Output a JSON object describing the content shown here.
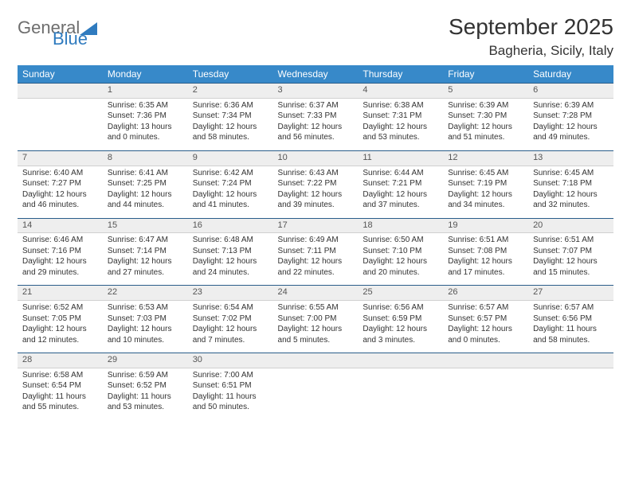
{
  "logo": {
    "word1": "General",
    "word2": "Blue"
  },
  "title": "September 2025",
  "location": "Bagheria, Sicily, Italy",
  "colors": {
    "header_bg": "#3789c9",
    "header_text": "#ffffff",
    "row_divider": "#2a5d8a",
    "daynum_bg": "#eeeeee",
    "text": "#333333",
    "logo_gray": "#6e6e6e",
    "logo_blue": "#2f7bbf"
  },
  "weekdays": [
    "Sunday",
    "Monday",
    "Tuesday",
    "Wednesday",
    "Thursday",
    "Friday",
    "Saturday"
  ],
  "weeks": [
    [
      null,
      {
        "n": "1",
        "sr": "Sunrise: 6:35 AM",
        "ss": "Sunset: 7:36 PM",
        "d1": "Daylight: 13 hours",
        "d2": "and 0 minutes."
      },
      {
        "n": "2",
        "sr": "Sunrise: 6:36 AM",
        "ss": "Sunset: 7:34 PM",
        "d1": "Daylight: 12 hours",
        "d2": "and 58 minutes."
      },
      {
        "n": "3",
        "sr": "Sunrise: 6:37 AM",
        "ss": "Sunset: 7:33 PM",
        "d1": "Daylight: 12 hours",
        "d2": "and 56 minutes."
      },
      {
        "n": "4",
        "sr": "Sunrise: 6:38 AM",
        "ss": "Sunset: 7:31 PM",
        "d1": "Daylight: 12 hours",
        "d2": "and 53 minutes."
      },
      {
        "n": "5",
        "sr": "Sunrise: 6:39 AM",
        "ss": "Sunset: 7:30 PM",
        "d1": "Daylight: 12 hours",
        "d2": "and 51 minutes."
      },
      {
        "n": "6",
        "sr": "Sunrise: 6:39 AM",
        "ss": "Sunset: 7:28 PM",
        "d1": "Daylight: 12 hours",
        "d2": "and 49 minutes."
      }
    ],
    [
      {
        "n": "7",
        "sr": "Sunrise: 6:40 AM",
        "ss": "Sunset: 7:27 PM",
        "d1": "Daylight: 12 hours",
        "d2": "and 46 minutes."
      },
      {
        "n": "8",
        "sr": "Sunrise: 6:41 AM",
        "ss": "Sunset: 7:25 PM",
        "d1": "Daylight: 12 hours",
        "d2": "and 44 minutes."
      },
      {
        "n": "9",
        "sr": "Sunrise: 6:42 AM",
        "ss": "Sunset: 7:24 PM",
        "d1": "Daylight: 12 hours",
        "d2": "and 41 minutes."
      },
      {
        "n": "10",
        "sr": "Sunrise: 6:43 AM",
        "ss": "Sunset: 7:22 PM",
        "d1": "Daylight: 12 hours",
        "d2": "and 39 minutes."
      },
      {
        "n": "11",
        "sr": "Sunrise: 6:44 AM",
        "ss": "Sunset: 7:21 PM",
        "d1": "Daylight: 12 hours",
        "d2": "and 37 minutes."
      },
      {
        "n": "12",
        "sr": "Sunrise: 6:45 AM",
        "ss": "Sunset: 7:19 PM",
        "d1": "Daylight: 12 hours",
        "d2": "and 34 minutes."
      },
      {
        "n": "13",
        "sr": "Sunrise: 6:45 AM",
        "ss": "Sunset: 7:18 PM",
        "d1": "Daylight: 12 hours",
        "d2": "and 32 minutes."
      }
    ],
    [
      {
        "n": "14",
        "sr": "Sunrise: 6:46 AM",
        "ss": "Sunset: 7:16 PM",
        "d1": "Daylight: 12 hours",
        "d2": "and 29 minutes."
      },
      {
        "n": "15",
        "sr": "Sunrise: 6:47 AM",
        "ss": "Sunset: 7:14 PM",
        "d1": "Daylight: 12 hours",
        "d2": "and 27 minutes."
      },
      {
        "n": "16",
        "sr": "Sunrise: 6:48 AM",
        "ss": "Sunset: 7:13 PM",
        "d1": "Daylight: 12 hours",
        "d2": "and 24 minutes."
      },
      {
        "n": "17",
        "sr": "Sunrise: 6:49 AM",
        "ss": "Sunset: 7:11 PM",
        "d1": "Daylight: 12 hours",
        "d2": "and 22 minutes."
      },
      {
        "n": "18",
        "sr": "Sunrise: 6:50 AM",
        "ss": "Sunset: 7:10 PM",
        "d1": "Daylight: 12 hours",
        "d2": "and 20 minutes."
      },
      {
        "n": "19",
        "sr": "Sunrise: 6:51 AM",
        "ss": "Sunset: 7:08 PM",
        "d1": "Daylight: 12 hours",
        "d2": "and 17 minutes."
      },
      {
        "n": "20",
        "sr": "Sunrise: 6:51 AM",
        "ss": "Sunset: 7:07 PM",
        "d1": "Daylight: 12 hours",
        "d2": "and 15 minutes."
      }
    ],
    [
      {
        "n": "21",
        "sr": "Sunrise: 6:52 AM",
        "ss": "Sunset: 7:05 PM",
        "d1": "Daylight: 12 hours",
        "d2": "and 12 minutes."
      },
      {
        "n": "22",
        "sr": "Sunrise: 6:53 AM",
        "ss": "Sunset: 7:03 PM",
        "d1": "Daylight: 12 hours",
        "d2": "and 10 minutes."
      },
      {
        "n": "23",
        "sr": "Sunrise: 6:54 AM",
        "ss": "Sunset: 7:02 PM",
        "d1": "Daylight: 12 hours",
        "d2": "and 7 minutes."
      },
      {
        "n": "24",
        "sr": "Sunrise: 6:55 AM",
        "ss": "Sunset: 7:00 PM",
        "d1": "Daylight: 12 hours",
        "d2": "and 5 minutes."
      },
      {
        "n": "25",
        "sr": "Sunrise: 6:56 AM",
        "ss": "Sunset: 6:59 PM",
        "d1": "Daylight: 12 hours",
        "d2": "and 3 minutes."
      },
      {
        "n": "26",
        "sr": "Sunrise: 6:57 AM",
        "ss": "Sunset: 6:57 PM",
        "d1": "Daylight: 12 hours",
        "d2": "and 0 minutes."
      },
      {
        "n": "27",
        "sr": "Sunrise: 6:57 AM",
        "ss": "Sunset: 6:56 PM",
        "d1": "Daylight: 11 hours",
        "d2": "and 58 minutes."
      }
    ],
    [
      {
        "n": "28",
        "sr": "Sunrise: 6:58 AM",
        "ss": "Sunset: 6:54 PM",
        "d1": "Daylight: 11 hours",
        "d2": "and 55 minutes."
      },
      {
        "n": "29",
        "sr": "Sunrise: 6:59 AM",
        "ss": "Sunset: 6:52 PM",
        "d1": "Daylight: 11 hours",
        "d2": "and 53 minutes."
      },
      {
        "n": "30",
        "sr": "Sunrise: 7:00 AM",
        "ss": "Sunset: 6:51 PM",
        "d1": "Daylight: 11 hours",
        "d2": "and 50 minutes."
      },
      null,
      null,
      null,
      null
    ]
  ]
}
